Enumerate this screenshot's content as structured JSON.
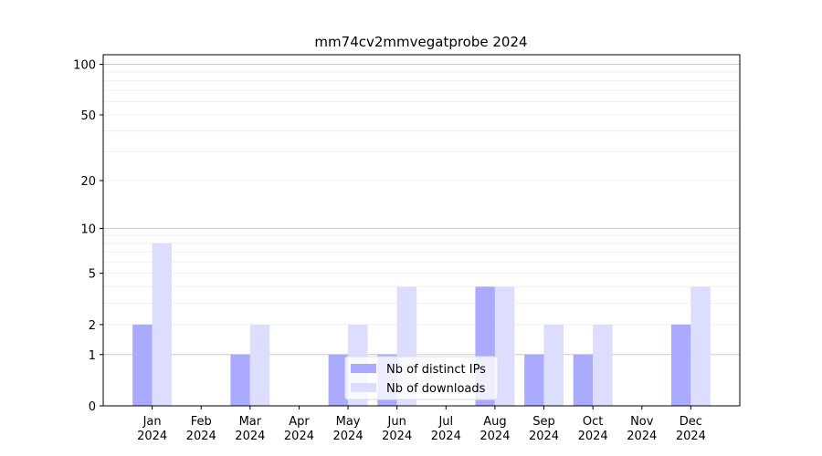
{
  "chart_data": {
    "type": "bar",
    "title": "mm74cv2mmvegatprobe 2024",
    "categories": [
      "Jan\n2024",
      "Feb\n2024",
      "Mar\n2024",
      "Apr\n2024",
      "May\n2024",
      "Jun\n2024",
      "Jul\n2024",
      "Aug\n2024",
      "Sep\n2024",
      "Oct\n2024",
      "Nov\n2024",
      "Dec\n2024"
    ],
    "series": [
      {
        "name": "Nb of distinct IPs",
        "color": "#aaaaff",
        "values": [
          2,
          0,
          1,
          0,
          1,
          1,
          0,
          4,
          1,
          1,
          0,
          2
        ]
      },
      {
        "name": "Nb of downloads",
        "color": "#ddddff",
        "values": [
          8,
          0,
          2,
          0,
          2,
          4,
          0,
          4,
          2,
          2,
          0,
          4
        ]
      }
    ],
    "yscale": "log1p",
    "ylim": [
      0,
      114
    ],
    "yticks": [
      0,
      1,
      2,
      5,
      10,
      20,
      50,
      100
    ],
    "major_grid": [
      1,
      10,
      100
    ],
    "minor_grid": [
      2,
      3,
      4,
      5,
      6,
      7,
      8,
      9,
      20,
      30,
      40,
      50,
      60,
      70,
      80,
      90
    ],
    "legend": "lower center"
  }
}
